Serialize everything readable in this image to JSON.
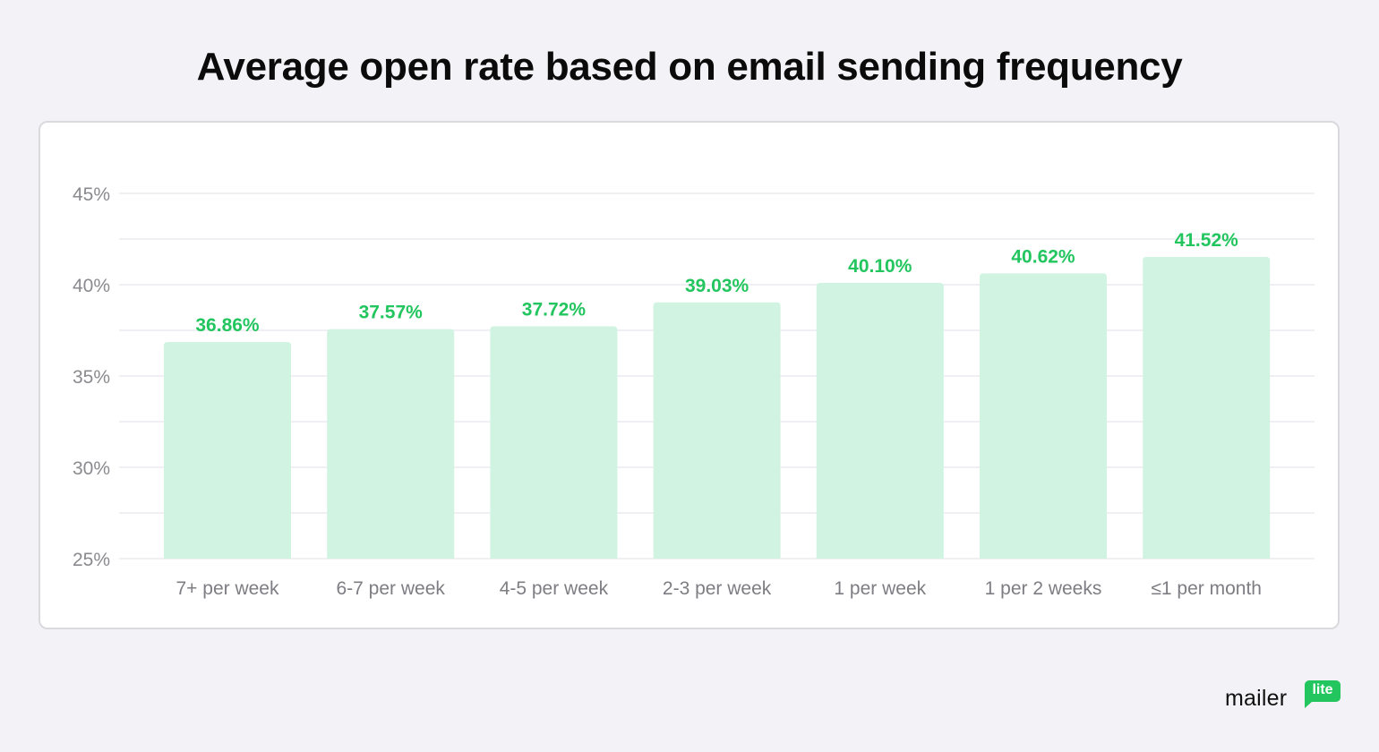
{
  "chart_data": {
    "type": "bar",
    "title": "Average open rate based on email sending frequency",
    "categories": [
      "7+ per week",
      "6-7 per week",
      "4-5 per week",
      "2-3 per week",
      "1 per week",
      "1 per 2 weeks",
      "≤1 per month"
    ],
    "values": [
      36.86,
      37.57,
      37.72,
      39.03,
      40.1,
      40.62,
      41.52
    ],
    "data_labels": [
      "36.86%",
      "37.57%",
      "37.72%",
      "39.03%",
      "40.10%",
      "40.62%",
      "41.52%"
    ],
    "ylim": [
      25,
      45
    ],
    "yticks": [
      25,
      30,
      35,
      40,
      45
    ],
    "ytick_labels": [
      "25%",
      "30%",
      "35%",
      "40%",
      "45%"
    ],
    "grid": true,
    "xlabel": "",
    "ylabel": "",
    "bar_color": "#d1f4e2",
    "label_color": "#22c55e"
  },
  "brand": {
    "word": "mailer",
    "badge": "lite"
  }
}
